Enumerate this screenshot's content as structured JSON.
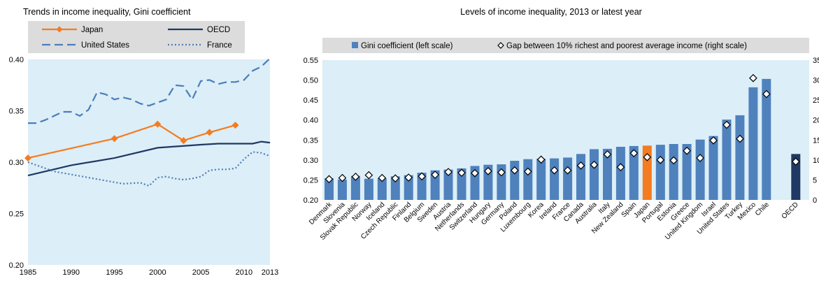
{
  "chart_data": [
    {
      "type": "line",
      "title": "Trends in income inequality, Gini coefficient",
      "xlim": [
        1985,
        2013
      ],
      "ylim": [
        0.2,
        0.4
      ],
      "x_ticks": [
        "1985",
        "1990",
        "1995",
        "2000",
        "2005",
        "2010",
        "2013"
      ],
      "y_ticks": [
        "0.20",
        "0.25",
        "0.30",
        "0.35",
        "0.40"
      ],
      "plot_background": "#DCEEF7",
      "legend_placement": "top",
      "series": [
        {
          "name": "Japan",
          "color": "#F47C20",
          "style": "solid-diamond",
          "x": [
            1985,
            1995,
            2000,
            2003,
            2006,
            2009
          ],
          "y": [
            0.304,
            0.323,
            0.337,
            0.321,
            0.329,
            0.336
          ]
        },
        {
          "name": "OECD",
          "color": "#1F3864",
          "style": "solid",
          "x": [
            1985,
            1990,
            1995,
            2000,
            2005,
            2007,
            2011,
            2012,
            2013
          ],
          "y": [
            0.287,
            0.297,
            0.304,
            0.314,
            0.317,
            0.318,
            0.318,
            0.32,
            0.319
          ]
        },
        {
          "name": "United States",
          "color": "#4A7EBB",
          "style": "dashed",
          "x": [
            1985,
            1986,
            1987,
            1988,
            1989,
            1990,
            1991,
            1992,
            1993,
            1994,
            1995,
            1996,
            1997,
            1998,
            1999,
            2000,
            2001,
            2002,
            2003,
            2004,
            2005,
            2006,
            2007,
            2008,
            2009,
            2010,
            2011,
            2012,
            2013
          ],
          "y": [
            0.338,
            0.338,
            0.341,
            0.345,
            0.349,
            0.349,
            0.345,
            0.351,
            0.368,
            0.366,
            0.361,
            0.363,
            0.361,
            0.357,
            0.355,
            0.358,
            0.361,
            0.375,
            0.374,
            0.361,
            0.379,
            0.38,
            0.376,
            0.378,
            0.378,
            0.38,
            0.389,
            0.393,
            0.401
          ]
        },
        {
          "name": "France",
          "color": "#4A7EBB",
          "style": "dotted",
          "x": [
            1985,
            1988,
            1990,
            1994,
            1996,
            1998,
            1999,
            2000,
            2001,
            2002,
            2003,
            2004,
            2005,
            2006,
            2007,
            2008,
            2009,
            2010,
            2011,
            2012,
            2013
          ],
          "y": [
            0.3,
            0.291,
            0.288,
            0.282,
            0.279,
            0.28,
            0.277,
            0.285,
            0.286,
            0.284,
            0.283,
            0.284,
            0.286,
            0.292,
            0.293,
            0.293,
            0.294,
            0.303,
            0.31,
            0.309,
            0.306
          ]
        }
      ]
    },
    {
      "type": "bar",
      "title": "Levels of income inequality, 2013 or latest year",
      "ylim": [
        0.2,
        0.55
      ],
      "y_ticks": [
        "0.20",
        "0.25",
        "0.30",
        "0.35",
        "0.40",
        "0.45",
        "0.50",
        "0.55"
      ],
      "y2lim": [
        0,
        35
      ],
      "y2_ticks": [
        "0",
        "5",
        "10",
        "15",
        "20",
        "25",
        "30",
        "35"
      ],
      "plot_background": "#DCEEF7",
      "legend_placement": "top",
      "legend": [
        "Gini coefficient (left scale)",
        "Gap between 10% richest and poorest average income (right scale)"
      ],
      "colors": {
        "bar": "#4F81BD",
        "japan": "#F47C20",
        "oecd": "#1F3864",
        "marker_fill": "#ffffff",
        "marker_stroke": "#000000"
      },
      "categories": [
        "Denmark",
        "Slovenia",
        "Slovak Republic",
        "Norway",
        "Iceland",
        "Czech Republic",
        "Finland",
        "Belgium",
        "Sweden",
        "Austria",
        "Netherlands",
        "Switzerland",
        "Hungary",
        "Germany",
        "Poland",
        "Luxembourg",
        "Korea",
        "Ireland",
        "France",
        "Canada",
        "Australia",
        "Italy",
        "New Zealand",
        "Spain",
        "Japan",
        "Portugal",
        "Estonia",
        "Greece",
        "United Kingdom",
        "Israel",
        "United States",
        "Turkey",
        "Mexico",
        "Chile",
        "OECD"
      ],
      "gini": [
        0.254,
        0.251,
        0.26,
        0.253,
        0.254,
        0.259,
        0.262,
        0.268,
        0.274,
        0.276,
        0.279,
        0.285,
        0.288,
        0.289,
        0.298,
        0.302,
        0.303,
        0.304,
        0.306,
        0.315,
        0.327,
        0.328,
        0.333,
        0.335,
        0.336,
        0.338,
        0.34,
        0.34,
        0.351,
        0.36,
        0.401,
        0.412,
        0.482,
        0.503,
        0.315
      ],
      "gap": [
        5.2,
        5.5,
        5.8,
        6.2,
        5.5,
        5.4,
        5.6,
        5.9,
        6.3,
        7.0,
        6.8,
        6.7,
        7.2,
        6.9,
        7.4,
        7.1,
        10.1,
        7.4,
        7.4,
        8.6,
        8.8,
        11.4,
        8.2,
        11.7,
        10.7,
        10.0,
        9.9,
        12.3,
        10.5,
        14.9,
        18.8,
        15.3,
        30.5,
        26.5,
        9.6
      ]
    }
  ]
}
